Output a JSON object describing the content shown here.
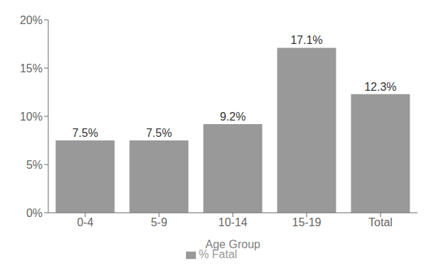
{
  "chart_data": {
    "type": "bar",
    "categories": [
      "0-4",
      "5-9",
      "10-14",
      "15-19",
      "Total"
    ],
    "series": [
      {
        "name": "% Fatal",
        "color": "#999999",
        "values": [
          7.5,
          7.5,
          9.2,
          17.1,
          12.3
        ],
        "value_labels": [
          "7.5%",
          "7.5%",
          "9.2%",
          "17.1%",
          "12.3%"
        ]
      }
    ],
    "xlabel": "Age Group",
    "ylim": [
      0,
      20
    ],
    "yticks": [
      {
        "value": 0,
        "label": "0%"
      },
      {
        "value": 5,
        "label": "5%"
      },
      {
        "value": 10,
        "label": "10%"
      },
      {
        "value": 15,
        "label": "15%"
      },
      {
        "value": 20,
        "label": "20%"
      }
    ],
    "data_labels": true,
    "grid": false,
    "legend": "bottom"
  }
}
